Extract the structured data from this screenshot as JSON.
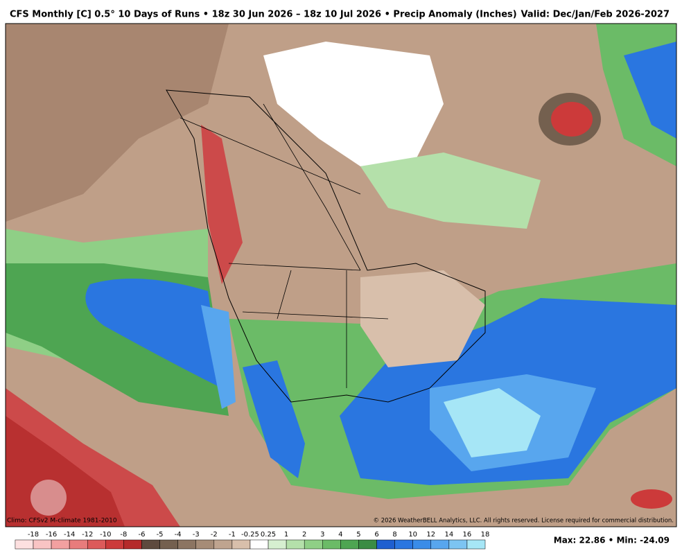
{
  "header": {
    "title": "CFS Monthly [C] 0.5° 10 Days of Runs • 18z 30 Jun 2026 – 18z 10 Jul 2026 • Precip Anomaly (Inches)",
    "valid": "Valid: Dec/Jan/Feb 2026-2027"
  },
  "footer": {
    "climo": "Climo: CFSv2 M-climate 1981-2010",
    "copyright": "© 2026 WeatherBELL Analytics, LLC. All rights reserved. License required for commercial distribution.",
    "stats": "Max: 22.86 • Min: -24.09"
  },
  "colorbar": {
    "labels": [
      -18,
      -16,
      -14,
      -12,
      -10,
      -8,
      -6,
      -5,
      -4,
      -3,
      -2,
      -1,
      -0.25,
      0.25,
      1,
      2,
      3,
      4,
      5,
      6,
      8,
      10,
      12,
      14,
      16,
      18
    ],
    "colors": [
      "#fde0e0",
      "#f9c4c4",
      "#f2a0a0",
      "#e87c7c",
      "#dc5a5a",
      "#cc3a3a",
      "#b52a2a",
      "#5e4a3e",
      "#74604f",
      "#8c7562",
      "#a68c77",
      "#bfa48f",
      "#d8bfab",
      "#ffffff",
      "#d6efd0",
      "#b4e0aa",
      "#8fcf86",
      "#6bbb67",
      "#4ea552",
      "#3a8c44",
      "#1e5fd0",
      "#2a76e0",
      "#3a8ce8",
      "#58a6ee",
      "#7cc4f2",
      "#a6e6f6"
    ]
  }
}
